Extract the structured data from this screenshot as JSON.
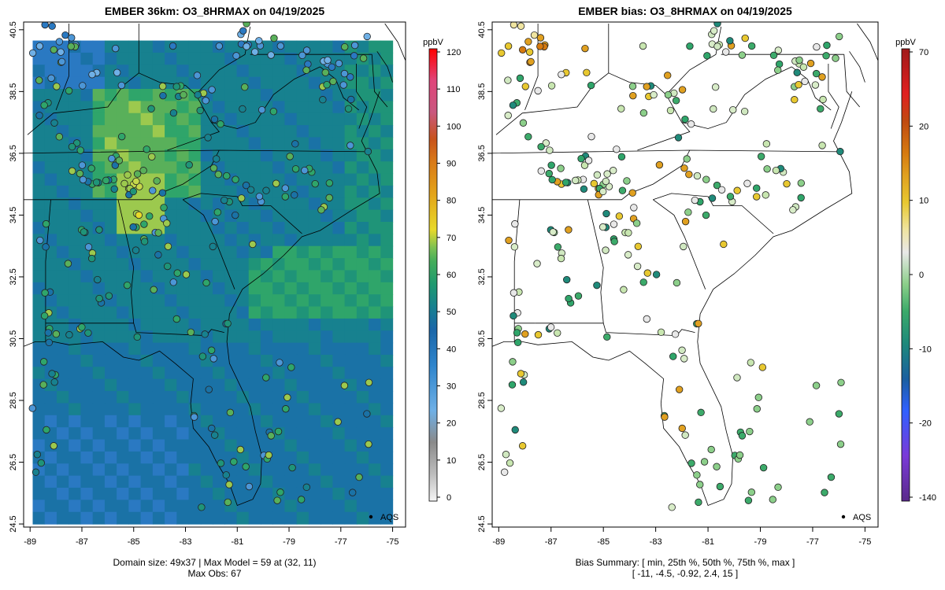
{
  "left_panel": {
    "title": "EMBER 36km: O3_8HRMAX on 04/19/2025",
    "colorbar_unit": "ppbV",
    "colorbar_ticks": [
      "0",
      "10",
      "20",
      "30",
      "40",
      "50",
      "60",
      "70",
      "80",
      "90",
      "100",
      "110",
      "120"
    ],
    "legend_label": "AQS",
    "caption_line1": "Domain size: 49x37 | Max Model = 59 at (32, 11)",
    "caption_line2": "Max Obs: 67",
    "colors": [
      "#f0f0f0",
      "#bdbdbd",
      "#8a8a8a",
      "#6fb0e6",
      "#3a8fd6",
      "#1b6fb0",
      "#17818f",
      "#1f9a6f",
      "#44ad5a",
      "#7cc153",
      "#e8d92a",
      "#e3a319",
      "#d97a18",
      "#c8531b",
      "#c9577f",
      "#e0457a",
      "#ff0000"
    ]
  },
  "right_panel": {
    "title": "EMBER bias: O3_8HRMAX on 04/19/2025",
    "colorbar_unit": "ppbV",
    "colorbar_ticks": [
      "-140",
      "-20",
      "-10",
      "0",
      "10",
      "20",
      "70"
    ],
    "legend_label": "AQS",
    "caption_line1": "Bias Summary: [ min, 25th %, 50th %, 75th %, max ]",
    "caption_line2": "[ -11,   -4.5,   -0.92,   2.4,   15 ]",
    "colors": [
      "#5a2a8a",
      "#7a3ad8",
      "#3060ff",
      "#1a5fa0",
      "#1f8a7a",
      "#3caa6a",
      "#8ccf8a",
      "#d0e8c0",
      "#e8e8e8",
      "#efe4a0",
      "#e8c830",
      "#e0a020",
      "#d67a10",
      "#c04a10",
      "#e02020",
      "#ff0000",
      "#a01a1a"
    ]
  },
  "x_ticks": [
    "-89",
    "-87",
    "-85",
    "-83",
    "-81",
    "-79",
    "-77",
    "-75"
  ],
  "y_ticks": [
    "24.5",
    "26.5",
    "28.5",
    "30.5",
    "32.5",
    "34.5",
    "36.5",
    "38.5",
    "40.5"
  ]
}
